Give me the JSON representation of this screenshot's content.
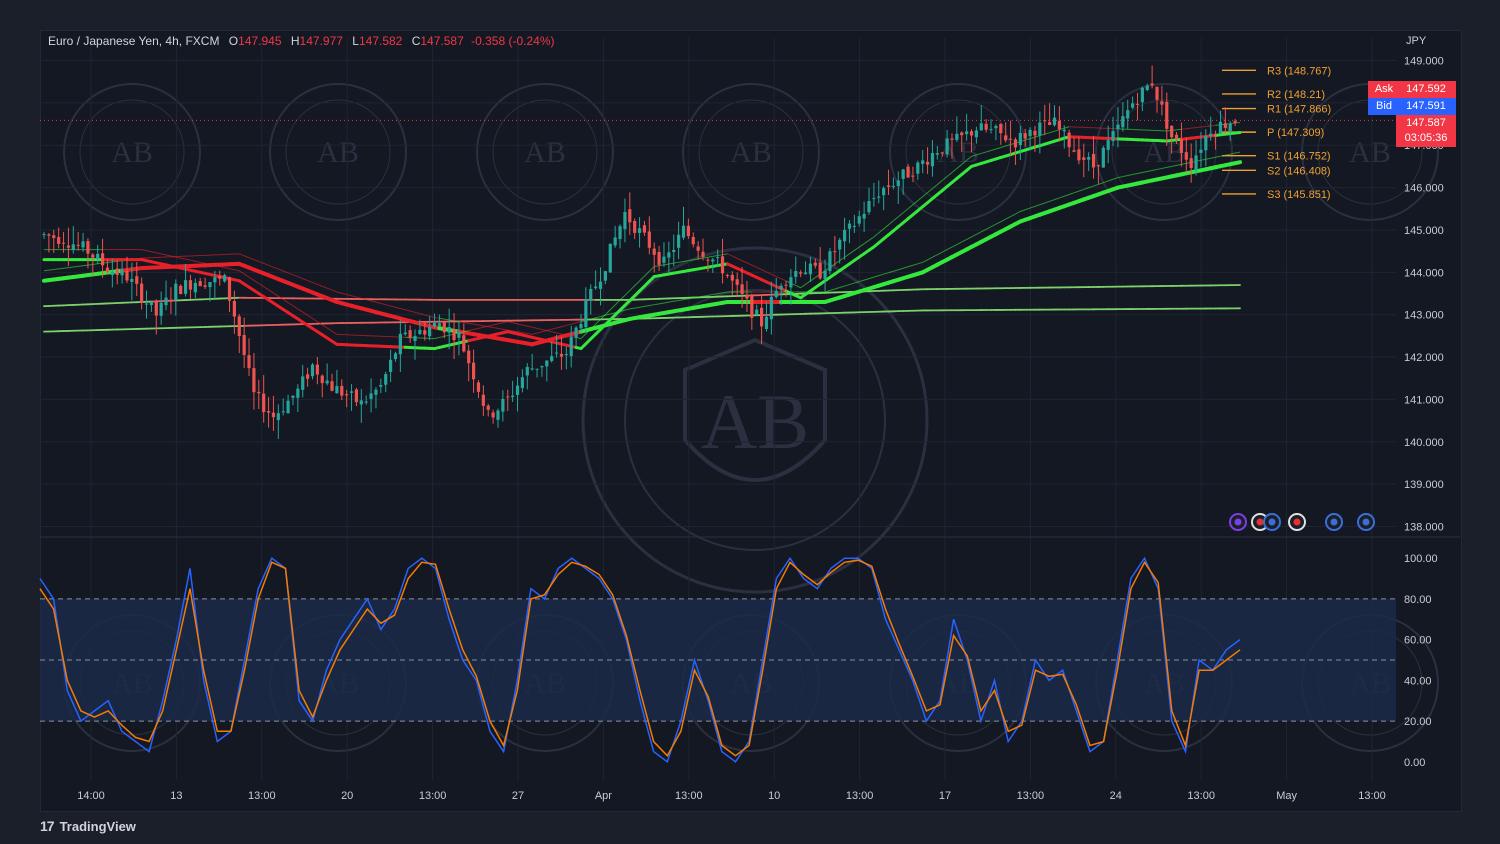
{
  "legend": {
    "symbol": "Euro / Japanese Yen, 4h, FXCM",
    "o_label": "O",
    "o": "147.945",
    "h_label": "H",
    "h": "147.977",
    "l_label": "L",
    "l": "147.582",
    "c_label": "C",
    "c": "147.587",
    "change": "-0.358 (-0.24%)"
  },
  "currency": "JPY",
  "brand": {
    "logo": "17",
    "name": "TradingView"
  },
  "price_tags": {
    "ask_label": "Ask",
    "ask": "147.592",
    "bid_label": "Bid",
    "bid": "147.591",
    "last": "147.587",
    "countdown": "03:05:36"
  },
  "colors": {
    "up": "#26a69a",
    "down": "#ef5350",
    "pivot": "#f0a030",
    "stoch_k": "#2962ff",
    "stoch_d": "#f57c00",
    "ema_green": "#35e83d",
    "ema_red": "#e8202a",
    "ask": "#f23645",
    "bid": "#2962ff"
  },
  "chart_data": [
    {
      "type": "candlestick",
      "title": "",
      "ylabel": "JPY",
      "ylim": [
        137.8,
        149.2
      ],
      "y_ticks": [
        "149.000",
        "148.000",
        "147.000",
        "146.000",
        "145.000",
        "144.000",
        "143.000",
        "142.000",
        "141.000",
        "140.000",
        "139.000",
        "138.000"
      ],
      "x_ticks": [
        "14:00",
        "13",
        "13:00",
        "20",
        "13:00",
        "27",
        "Apr",
        "13:00",
        "10",
        "13:00",
        "17",
        "13:00",
        "24",
        "13:00",
        "May",
        "13:00"
      ],
      "price_path": [
        [
          0,
          144.9
        ],
        [
          5,
          144.8
        ],
        [
          10,
          144.5
        ],
        [
          14,
          144.1
        ],
        [
          18,
          143.9
        ],
        [
          24,
          143.0
        ],
        [
          28,
          143.6
        ],
        [
          32,
          143.8
        ],
        [
          38,
          143.8
        ],
        [
          40,
          143.0
        ],
        [
          44,
          141.1
        ],
        [
          48,
          140.6
        ],
        [
          53,
          141.2
        ],
        [
          56,
          141.8
        ],
        [
          60,
          141.3
        ],
        [
          66,
          140.9
        ],
        [
          70,
          141.3
        ],
        [
          74,
          142.4
        ],
        [
          78,
          142.6
        ],
        [
          82,
          142.8
        ],
        [
          86,
          142.5
        ],
        [
          89,
          141.6
        ],
        [
          92,
          140.6
        ],
        [
          96,
          141.0
        ],
        [
          100,
          141.7
        ],
        [
          104,
          141.9
        ],
        [
          108,
          142.1
        ],
        [
          112,
          143.2
        ],
        [
          116,
          144.2
        ],
        [
          120,
          145.4
        ],
        [
          124,
          144.8
        ],
        [
          128,
          144.2
        ],
        [
          132,
          145.0
        ],
        [
          136,
          144.5
        ],
        [
          140,
          144.1
        ],
        [
          144,
          143.4
        ],
        [
          148,
          142.8
        ],
        [
          152,
          143.8
        ],
        [
          156,
          144.1
        ],
        [
          160,
          144.0
        ],
        [
          164,
          144.7
        ],
        [
          168,
          145.3
        ],
        [
          172,
          145.9
        ],
        [
          176,
          146.2
        ],
        [
          180,
          146.5
        ],
        [
          184,
          146.9
        ],
        [
          188,
          147.1
        ],
        [
          192,
          147.4
        ],
        [
          196,
          147.3
        ],
        [
          200,
          147.1
        ],
        [
          204,
          147.4
        ],
        [
          208,
          147.5
        ],
        [
          212,
          146.9
        ],
        [
          216,
          146.5
        ],
        [
          220,
          147.2
        ],
        [
          224,
          148.0
        ],
        [
          228,
          148.5
        ],
        [
          232,
          147.2
        ],
        [
          236,
          146.6
        ],
        [
          240,
          147.4
        ],
        [
          245,
          147.6
        ]
      ],
      "pivots": [
        {
          "name": "R3",
          "value": 148.767,
          "label": "R3 (148.767)"
        },
        {
          "name": "R2",
          "value": 148.21,
          "label": "R2 (148.21)"
        },
        {
          "name": "R1",
          "value": 147.866,
          "label": "R1 (147.866)"
        },
        {
          "name": "P",
          "value": 147.309,
          "label": "P (147.309)"
        },
        {
          "name": "S1",
          "value": 146.752,
          "label": "S1 (146.752)"
        },
        {
          "name": "S2",
          "value": 146.408,
          "label": "S2 (146.408)"
        },
        {
          "name": "S3",
          "value": 145.851,
          "label": "S3 (145.851)"
        }
      ],
      "last_price": 147.587,
      "moving_averages": [
        {
          "period": 200,
          "points": [
            [
              0,
              142.6
            ],
            [
              60,
              142.8
            ],
            [
              120,
              142.9
            ],
            [
              180,
              143.1
            ],
            [
              245,
              143.15
            ]
          ]
        },
        {
          "period": 100,
          "points": [
            [
              0,
              143.2
            ],
            [
              40,
              143.4
            ],
            [
              80,
              143.35
            ],
            [
              120,
              143.35
            ],
            [
              180,
              143.6
            ],
            [
              245,
              143.7
            ]
          ]
        },
        {
          "period": 50,
          "points": [
            [
              0,
              143.8
            ],
            [
              20,
              144.1
            ],
            [
              40,
              144.2
            ],
            [
              60,
              143.3
            ],
            [
              80,
              142.7
            ],
            [
              100,
              142.3
            ],
            [
              120,
              142.9
            ],
            [
              140,
              143.3
            ],
            [
              160,
              143.3
            ],
            [
              180,
              144.0
            ],
            [
              200,
              145.2
            ],
            [
              220,
              146.0
            ],
            [
              245,
              146.6
            ]
          ]
        },
        {
          "period": 20,
          "points": [
            [
              0,
              144.3
            ],
            [
              20,
              144.3
            ],
            [
              40,
              143.8
            ],
            [
              60,
              142.3
            ],
            [
              80,
              142.2
            ],
            [
              95,
              142.6
            ],
            [
              110,
              142.2
            ],
            [
              125,
              143.9
            ],
            [
              140,
              144.2
            ],
            [
              155,
              143.4
            ],
            [
              170,
              144.6
            ],
            [
              190,
              146.5
            ],
            [
              210,
              147.2
            ],
            [
              230,
              147.1
            ],
            [
              245,
              147.3
            ]
          ]
        }
      ]
    },
    {
      "type": "line",
      "title": "",
      "ylim": [
        -5,
        105
      ],
      "y_ticks": [
        "100.00",
        "80.00",
        "60.00",
        "40.00",
        "20.00",
        "0.00"
      ],
      "bands": [
        20,
        50,
        80
      ],
      "series": [
        {
          "key": "k",
          "values": [
            90,
            80,
            35,
            20,
            25,
            30,
            15,
            10,
            5,
            30,
            60,
            95,
            40,
            10,
            15,
            50,
            85,
            100,
            95,
            30,
            20,
            45,
            60,
            70,
            80,
            65,
            75,
            95,
            100,
            95,
            70,
            50,
            40,
            15,
            5,
            40,
            85,
            80,
            95,
            100,
            95,
            90,
            80,
            60,
            30,
            5,
            0,
            20,
            50,
            30,
            5,
            0,
            10,
            50,
            90,
            100,
            90,
            85,
            95,
            100,
            100,
            95,
            70,
            55,
            40,
            20,
            30,
            70,
            50,
            20,
            40,
            10,
            20,
            50,
            40,
            45,
            25,
            5,
            10,
            50,
            90,
            100,
            85,
            20,
            5,
            50,
            45,
            55,
            60
          ]
        },
        {
          "key": "d",
          "values": [
            85,
            75,
            40,
            25,
            22,
            25,
            18,
            12,
            10,
            25,
            55,
            85,
            45,
            15,
            15,
            45,
            80,
            98,
            95,
            35,
            22,
            40,
            55,
            65,
            75,
            68,
            72,
            90,
            98,
            97,
            75,
            55,
            42,
            20,
            8,
            35,
            80,
            82,
            92,
            98,
            96,
            92,
            82,
            62,
            35,
            10,
            3,
            15,
            45,
            32,
            8,
            3,
            8,
            45,
            85,
            98,
            92,
            87,
            93,
            98,
            99,
            96,
            75,
            58,
            42,
            25,
            28,
            62,
            52,
            25,
            35,
            15,
            18,
            45,
            42,
            43,
            28,
            8,
            10,
            45,
            85,
            98,
            88,
            25,
            8,
            45,
            45,
            50,
            55
          ]
        }
      ]
    }
  ]
}
